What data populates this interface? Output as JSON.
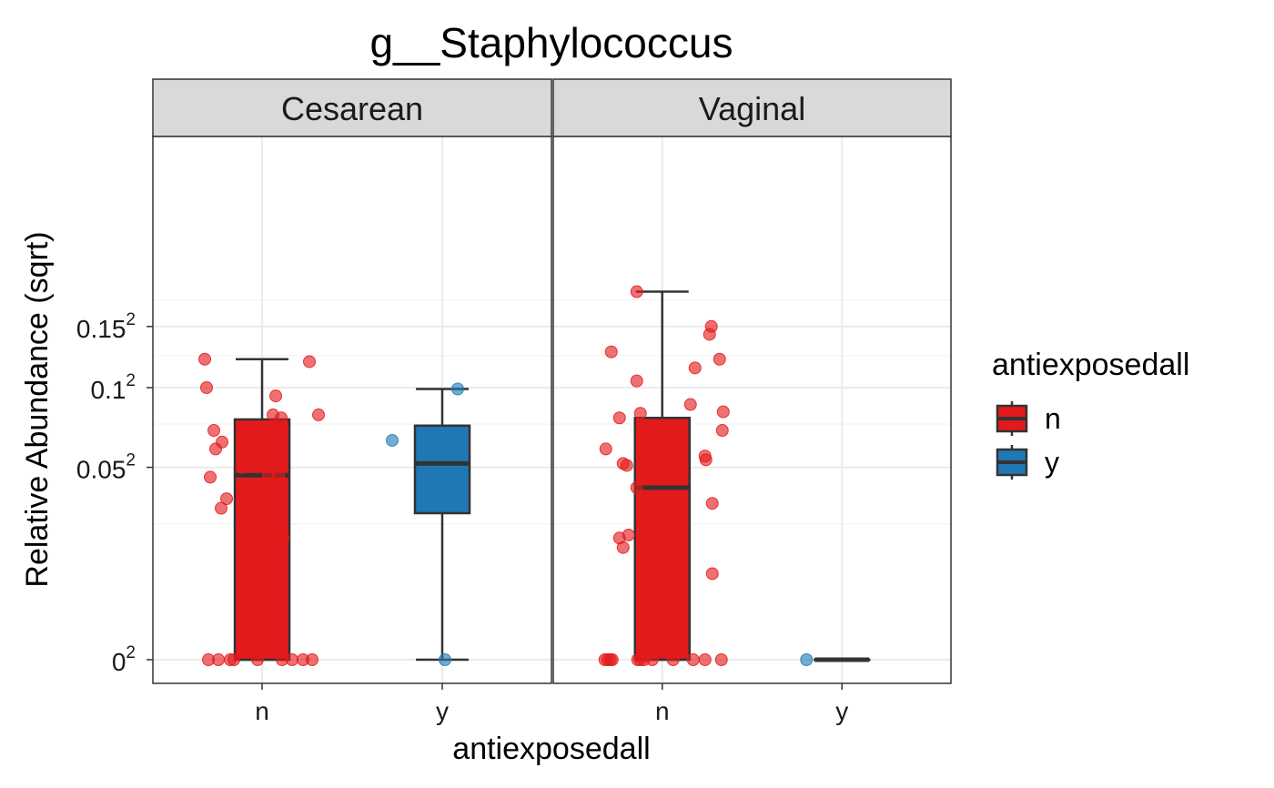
{
  "chart_data": {
    "type": "box",
    "title": "g__Staphylococcus",
    "xlabel": "antiexposedall",
    "ylabel": "Relative Abundance (sqrt)",
    "y_scale": "sqrt",
    "ylim": [
      0,
      0.188
    ],
    "yticks": [
      {
        "value": 0,
        "base": "0",
        "exp": "2"
      },
      {
        "value": 0.05,
        "base": "0.05",
        "exp": "2"
      },
      {
        "value": 0.1,
        "base": "0.1",
        "exp": "2"
      },
      {
        "value": 0.15,
        "base": "0.15",
        "exp": "2"
      }
    ],
    "categories": [
      "n",
      "y"
    ],
    "grid": true,
    "legend": {
      "title": "antiexposedall",
      "position": "right",
      "items": [
        {
          "label": "n",
          "color": "#e31a1c"
        },
        {
          "label": "y",
          "color": "#1f78b4"
        }
      ]
    },
    "facets": [
      {
        "label": "Cesarean",
        "boxes": [
          {
            "category": "n",
            "color": "#e31a1c",
            "min": 0,
            "q1": 0,
            "median": 0.046,
            "q3": 0.078,
            "max": 0.122
          },
          {
            "category": "y",
            "color": "#1f78b4",
            "min": 0,
            "q1": 0.029,
            "median": 0.052,
            "q3": 0.074,
            "max": 0.099
          }
        ],
        "points": [
          {
            "category": "n",
            "color": "#e31a1c",
            "jitter": [
              -0.63,
              -0.61,
              -0.53,
              -0.44,
              -0.51,
              -0.57,
              -0.45,
              -0.39,
              -0.22,
              0.12,
              0.15,
              0.21,
              0.18,
              0.23,
              0.07,
              0.52,
              0.62,
              -0.59,
              -0.48,
              -0.35,
              -0.31,
              -0.05,
              0.22,
              0.33,
              0.45,
              0.55
            ],
            "values": [
              0.122,
              0.1,
              0.071,
              0.064,
              0.06,
              0.045,
              0.031,
              0.035,
              0.05,
              0.081,
              0.094,
              0.079,
              0.046,
              0.02,
              0.046,
              0.12,
              0.081,
              0,
              0,
              0,
              0,
              0,
              0,
              0,
              0,
              0
            ]
          },
          {
            "category": "y",
            "color": "#1f78b4",
            "jitter": [
              -0.55,
              0.17,
              0.03
            ],
            "values": [
              0.065,
              0.099,
              0
            ]
          }
        ]
      },
      {
        "label": "Vaginal",
        "boxes": [
          {
            "category": "n",
            "color": "#e31a1c",
            "min": 0,
            "q1": 0,
            "median": 0.04,
            "q3": 0.079,
            "max": 0.183
          },
          {
            "category": "y",
            "color": "#1f78b4",
            "min": 0,
            "q1": 0,
            "median": 0,
            "q3": 0,
            "max": 0
          }
        ],
        "points": [
          {
            "category": "n",
            "color": "#e31a1c",
            "jitter": [
              -0.28,
              -0.56,
              -0.28,
              -0.24,
              0.31,
              0.54,
              0.52,
              0.36,
              0.63,
              0.12,
              -0.28,
              -0.47,
              -0.39,
              -0.62,
              -0.43,
              -0.37,
              0.47,
              0.67,
              0.66,
              0.48,
              0.55,
              -0.43,
              -0.47,
              0.55,
              -0.27,
              -0.63,
              -0.6,
              -0.57,
              -0.24,
              -0.2,
              -0.11,
              0.34,
              0.47,
              0.65,
              -0.55
            ],
            "values": [
              0.183,
              0.128,
              0.105,
              0.082,
              0.088,
              0.15,
              0.143,
              0.115,
              0.122,
              0.0,
              0.04,
              0.079,
              0.051,
              0.06,
              0.052,
              0.021,
              0.056,
              0.083,
              0.071,
              0.054,
              0.033,
              0.017,
              0.02,
              0.01,
              0,
              0,
              0,
              0,
              0,
              0,
              0,
              0,
              0,
              0,
              0.0
            ]
          },
          {
            "category": "y",
            "color": "#1f78b4",
            "jitter": [
              -0.39
            ],
            "values": [
              0
            ]
          }
        ]
      }
    ]
  }
}
